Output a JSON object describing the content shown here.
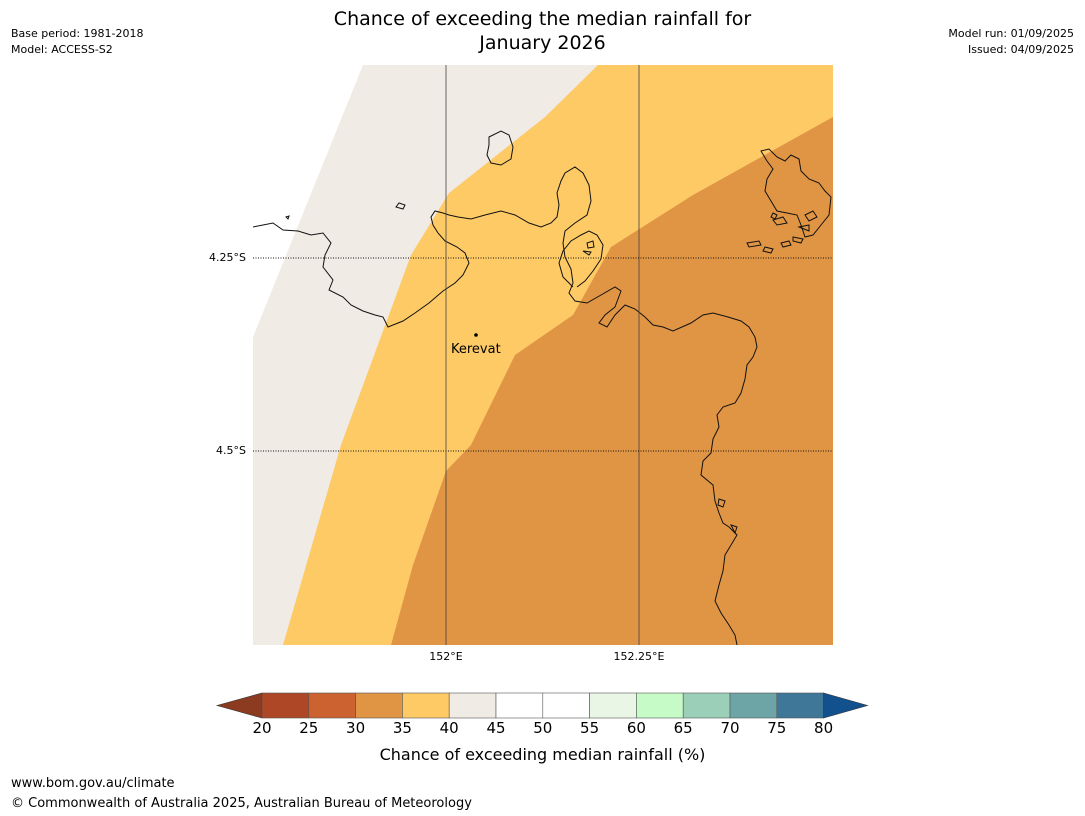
{
  "header": {
    "title_line1": "Chance of exceeding the median rainfall for",
    "title_line2": "January 2026",
    "base_period": "Base period: 1981-2018",
    "model": "Model: ACCESS-S2",
    "model_run": "Model run: 01/09/2025",
    "issued": "Issued: 04/09/2025"
  },
  "map": {
    "lat_labels": [
      "4.25°S",
      "4.5°S"
    ],
    "lon_labels": [
      "152°E",
      "152.25°E"
    ],
    "place": "Kerevat",
    "colors": {
      "band_40_45": "#f0ebe5",
      "band_35_40": "#fdca66",
      "band_30_35": "#e09545"
    }
  },
  "colorbar": {
    "ticks": [
      "20",
      "25",
      "30",
      "35",
      "40",
      "45",
      "50",
      "55",
      "60",
      "65",
      "70",
      "75",
      "80"
    ],
    "colors": [
      "#ae4725",
      "#cb6230",
      "#e09545",
      "#fdca66",
      "#f0ebe5",
      "#ffffff",
      "#ffffff",
      "#e9f6e6",
      "#c6fac6",
      "#9ccfb7",
      "#6da4a5",
      "#3e7797"
    ],
    "under_color": "#8c3a20",
    "over_color": "#12508e",
    "label": "Chance of exceeding median rainfall (%)"
  },
  "footer": {
    "url": "www.bom.gov.au/climate",
    "copyright": "© Commonwealth of Australia 2025, Australian Bureau of Meteorology"
  }
}
